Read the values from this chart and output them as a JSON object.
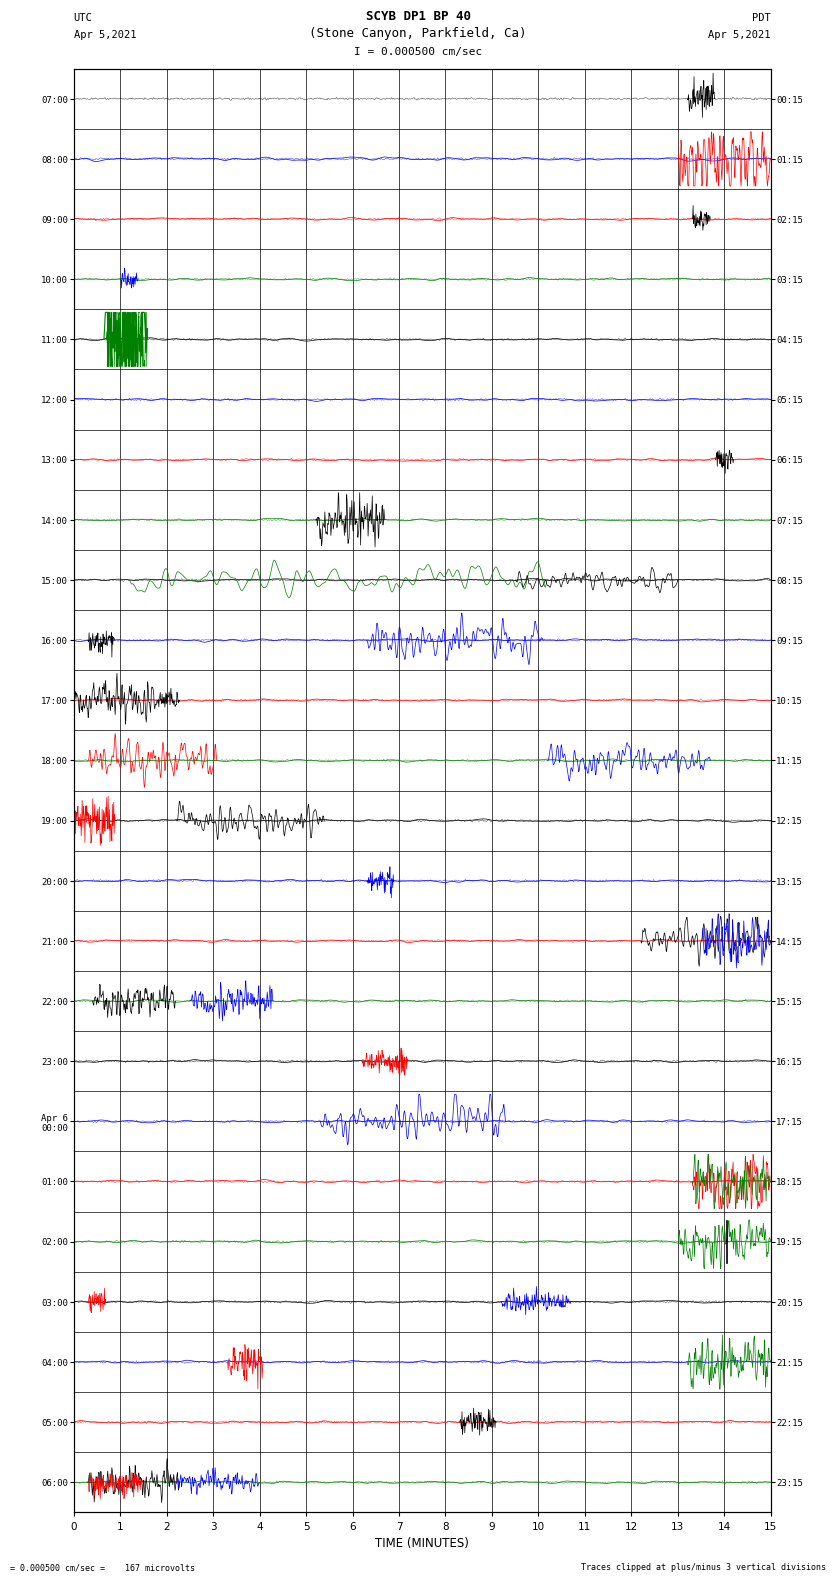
{
  "title_line1": "SCYB DP1 BP 40",
  "title_line2": "(Stone Canyon, Parkfield, Ca)",
  "scale_label": "I = 0.000500 cm/sec",
  "left_label": "UTC",
  "left_date": "Apr 5,2021",
  "right_label": "PDT",
  "right_date": "Apr 5,2021",
  "xlabel": "TIME (MINUTES)",
  "bottom_left": "= 0.000500 cm/sec =    167 microvolts",
  "bottom_right": "Traces clipped at plus/minus 3 vertical divisions",
  "utc_times": [
    "07:00",
    "08:00",
    "09:00",
    "10:00",
    "11:00",
    "12:00",
    "13:00",
    "14:00",
    "15:00",
    "16:00",
    "17:00",
    "18:00",
    "19:00",
    "20:00",
    "21:00",
    "22:00",
    "23:00",
    "Apr 6\n00:00",
    "01:00",
    "02:00",
    "03:00",
    "04:00",
    "05:00",
    "06:00"
  ],
  "pdt_times": [
    "00:15",
    "01:15",
    "02:15",
    "03:15",
    "04:15",
    "05:15",
    "06:15",
    "07:15",
    "08:15",
    "09:15",
    "10:15",
    "11:15",
    "12:15",
    "13:15",
    "14:15",
    "15:15",
    "16:15",
    "17:15",
    "18:15",
    "19:15",
    "20:15",
    "21:15",
    "22:15",
    "23:15"
  ],
  "n_rows": 24,
  "n_minutes": 15,
  "bg_color": "#ffffff",
  "figsize": [
    8.5,
    16.13
  ],
  "dpi": 100,
  "row_colors": [
    "black",
    "blue",
    "red",
    "green",
    "black",
    "blue",
    "red",
    "green",
    "black",
    "blue",
    "red",
    "green",
    "black",
    "blue",
    "red",
    "green",
    "black",
    "blue",
    "red",
    "green",
    "black",
    "blue",
    "red",
    "green"
  ],
  "noise_amp": 0.012,
  "event_amp": 0.1,
  "clip_level": 0.45,
  "events": [
    {
      "row": 0,
      "t": 13.2,
      "dur": 0.6,
      "color": "black",
      "amp": 1.5
    },
    {
      "row": 1,
      "t": 0.0,
      "dur": 15.0,
      "color": "blue",
      "amp": 0.15
    },
    {
      "row": 1,
      "t": 13.0,
      "dur": 2.0,
      "color": "red",
      "amp": 3.0
    },
    {
      "row": 2,
      "t": 0.0,
      "dur": 15.0,
      "color": "red",
      "amp": 0.1
    },
    {
      "row": 2,
      "t": 13.3,
      "dur": 0.4,
      "color": "black",
      "amp": 1.0
    },
    {
      "row": 3,
      "t": 0.0,
      "dur": 15.0,
      "color": "green",
      "amp": 0.1
    },
    {
      "row": 3,
      "t": 1.0,
      "dur": 0.4,
      "color": "blue",
      "amp": 0.8
    },
    {
      "row": 4,
      "t": 0.0,
      "dur": 15.0,
      "color": "black",
      "amp": 0.1
    },
    {
      "row": 4,
      "t": 0.7,
      "dur": 0.9,
      "color": "green",
      "amp": 8.0
    },
    {
      "row": 5,
      "t": 0.0,
      "dur": 15.0,
      "color": "blue",
      "amp": 0.1
    },
    {
      "row": 6,
      "t": 0.0,
      "dur": 15.0,
      "color": "red",
      "amp": 0.1
    },
    {
      "row": 6,
      "t": 13.8,
      "dur": 0.4,
      "color": "black",
      "amp": 1.0
    },
    {
      "row": 7,
      "t": 0.0,
      "dur": 15.0,
      "color": "green",
      "amp": 0.1
    },
    {
      "row": 7,
      "t": 5.2,
      "dur": 1.5,
      "color": "black",
      "amp": 1.8
    },
    {
      "row": 8,
      "t": 0.0,
      "dur": 15.0,
      "color": "black",
      "amp": 0.1
    },
    {
      "row": 8,
      "t": 1.2,
      "dur": 9.0,
      "color": "green",
      "amp": 1.2
    },
    {
      "row": 8,
      "t": 9.5,
      "dur": 3.5,
      "color": "black",
      "amp": 0.8
    },
    {
      "row": 9,
      "t": 0.0,
      "dur": 15.0,
      "color": "blue",
      "amp": 0.1
    },
    {
      "row": 9,
      "t": 0.3,
      "dur": 0.6,
      "color": "black",
      "amp": 1.0
    },
    {
      "row": 9,
      "t": 6.3,
      "dur": 3.8,
      "color": "blue",
      "amp": 1.5
    },
    {
      "row": 10,
      "t": 0.0,
      "dur": 15.0,
      "color": "red",
      "amp": 0.1
    },
    {
      "row": 10,
      "t": 0.0,
      "dur": 1.8,
      "color": "black",
      "amp": 1.5
    },
    {
      "row": 10,
      "t": 1.8,
      "dur": 0.5,
      "color": "black",
      "amp": 0.8
    },
    {
      "row": 11,
      "t": 0.0,
      "dur": 15.0,
      "color": "green",
      "amp": 0.1
    },
    {
      "row": 11,
      "t": 0.3,
      "dur": 2.8,
      "color": "red",
      "amp": 1.5
    },
    {
      "row": 11,
      "t": 10.2,
      "dur": 3.5,
      "color": "blue",
      "amp": 1.2
    },
    {
      "row": 12,
      "t": 0.0,
      "dur": 15.0,
      "color": "black",
      "amp": 0.1
    },
    {
      "row": 12,
      "t": 0.0,
      "dur": 0.9,
      "color": "red",
      "amp": 2.0
    },
    {
      "row": 12,
      "t": 2.2,
      "dur": 3.2,
      "color": "black",
      "amp": 1.2
    },
    {
      "row": 13,
      "t": 0.0,
      "dur": 15.0,
      "color": "blue",
      "amp": 0.1
    },
    {
      "row": 13,
      "t": 6.3,
      "dur": 0.6,
      "color": "blue",
      "amp": 1.0
    },
    {
      "row": 14,
      "t": 0.0,
      "dur": 15.0,
      "color": "red",
      "amp": 0.1
    },
    {
      "row": 14,
      "t": 12.2,
      "dur": 2.8,
      "color": "black",
      "amp": 1.5
    },
    {
      "row": 14,
      "t": 13.5,
      "dur": 1.5,
      "color": "blue",
      "amp": 2.0
    },
    {
      "row": 15,
      "t": 0.0,
      "dur": 15.0,
      "color": "green",
      "amp": 0.1
    },
    {
      "row": 15,
      "t": 0.4,
      "dur": 1.8,
      "color": "black",
      "amp": 1.2
    },
    {
      "row": 15,
      "t": 2.5,
      "dur": 1.8,
      "color": "blue",
      "amp": 1.2
    },
    {
      "row": 16,
      "t": 0.0,
      "dur": 15.0,
      "color": "black",
      "amp": 0.1
    },
    {
      "row": 16,
      "t": 6.2,
      "dur": 1.0,
      "color": "red",
      "amp": 1.0
    },
    {
      "row": 17,
      "t": 0.0,
      "dur": 15.0,
      "color": "blue",
      "amp": 0.1
    },
    {
      "row": 17,
      "t": 5.3,
      "dur": 4.0,
      "color": "blue",
      "amp": 1.5
    },
    {
      "row": 18,
      "t": 0.0,
      "dur": 15.0,
      "color": "red",
      "amp": 0.1
    },
    {
      "row": 18,
      "t": 13.3,
      "dur": 1.7,
      "color": "red",
      "amp": 2.5
    },
    {
      "row": 18,
      "t": 13.3,
      "dur": 1.7,
      "color": "green",
      "amp": 2.0
    },
    {
      "row": 19,
      "t": 0.0,
      "dur": 15.0,
      "color": "green",
      "amp": 0.1
    },
    {
      "row": 19,
      "t": 13.0,
      "dur": 2.0,
      "color": "green",
      "amp": 1.8
    },
    {
      "row": 20,
      "t": 0.0,
      "dur": 15.0,
      "color": "black",
      "amp": 0.1
    },
    {
      "row": 20,
      "t": 0.3,
      "dur": 0.4,
      "color": "red",
      "amp": 1.0
    },
    {
      "row": 20,
      "t": 9.2,
      "dur": 1.5,
      "color": "blue",
      "amp": 0.8
    },
    {
      "row": 21,
      "t": 0.0,
      "dur": 15.0,
      "color": "blue",
      "amp": 0.1
    },
    {
      "row": 21,
      "t": 3.3,
      "dur": 0.8,
      "color": "red",
      "amp": 1.5
    },
    {
      "row": 21,
      "t": 13.2,
      "dur": 2.0,
      "color": "green",
      "amp": 2.0
    },
    {
      "row": 22,
      "t": 0.0,
      "dur": 15.0,
      "color": "red",
      "amp": 0.1
    },
    {
      "row": 22,
      "t": 8.3,
      "dur": 0.8,
      "color": "black",
      "amp": 1.0
    },
    {
      "row": 23,
      "t": 0.0,
      "dur": 15.0,
      "color": "green",
      "amp": 0.1
    },
    {
      "row": 23,
      "t": 0.3,
      "dur": 2.0,
      "color": "black",
      "amp": 1.2
    },
    {
      "row": 23,
      "t": 0.3,
      "dur": 1.2,
      "color": "red",
      "amp": 1.0
    },
    {
      "row": 23,
      "t": 2.2,
      "dur": 1.8,
      "color": "blue",
      "amp": 0.8
    }
  ]
}
